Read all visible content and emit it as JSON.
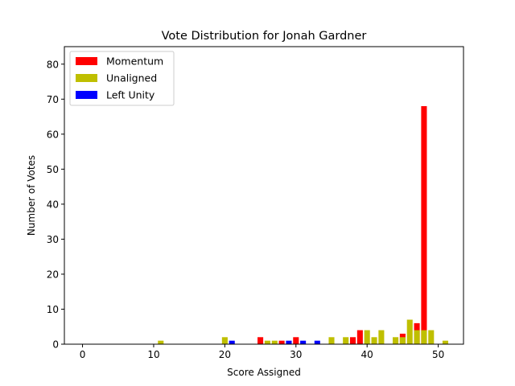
{
  "chart_data": {
    "type": "bar",
    "title": "Vote Distribution for Jonah Gardner",
    "xlabel": "Score Assigned",
    "ylabel": "Number of Votes",
    "xlim": [
      -2.55,
      53.55
    ],
    "ylim": [
      0,
      85
    ],
    "xticks": [
      0,
      10,
      20,
      30,
      40,
      50
    ],
    "yticks": [
      0,
      10,
      20,
      30,
      40,
      50,
      60,
      70,
      80
    ],
    "bar_width": 0.8,
    "grid": false,
    "legend_position": "top-left",
    "series": [
      {
        "name": "Momentum",
        "color": "#ff0000",
        "points": [
          {
            "x": 25,
            "y": 2
          },
          {
            "x": 28,
            "y": 1
          },
          {
            "x": 30,
            "y": 2
          },
          {
            "x": 38,
            "y": 2
          },
          {
            "x": 39,
            "y": 4
          },
          {
            "x": 45,
            "y": 3
          },
          {
            "x": 47,
            "y": 6
          },
          {
            "x": 48,
            "y": 68
          }
        ]
      },
      {
        "name": "Unaligned",
        "color": "#bfbf00",
        "points": [
          {
            "x": 11,
            "y": 1
          },
          {
            "x": 20,
            "y": 2
          },
          {
            "x": 26,
            "y": 1
          },
          {
            "x": 27,
            "y": 1
          },
          {
            "x": 35,
            "y": 2
          },
          {
            "x": 37,
            "y": 2
          },
          {
            "x": 40,
            "y": 4
          },
          {
            "x": 41,
            "y": 2
          },
          {
            "x": 42,
            "y": 4
          },
          {
            "x": 44,
            "y": 2
          },
          {
            "x": 45,
            "y": 2
          },
          {
            "x": 46,
            "y": 7
          },
          {
            "x": 47,
            "y": 4
          },
          {
            "x": 48,
            "y": 4
          },
          {
            "x": 49,
            "y": 4
          },
          {
            "x": 51,
            "y": 1
          }
        ]
      },
      {
        "name": "Left Unity",
        "color": "#0000ff",
        "points": [
          {
            "x": 21,
            "y": 1
          },
          {
            "x": 29,
            "y": 1
          },
          {
            "x": 31,
            "y": 1
          },
          {
            "x": 33,
            "y": 1
          }
        ]
      }
    ]
  }
}
